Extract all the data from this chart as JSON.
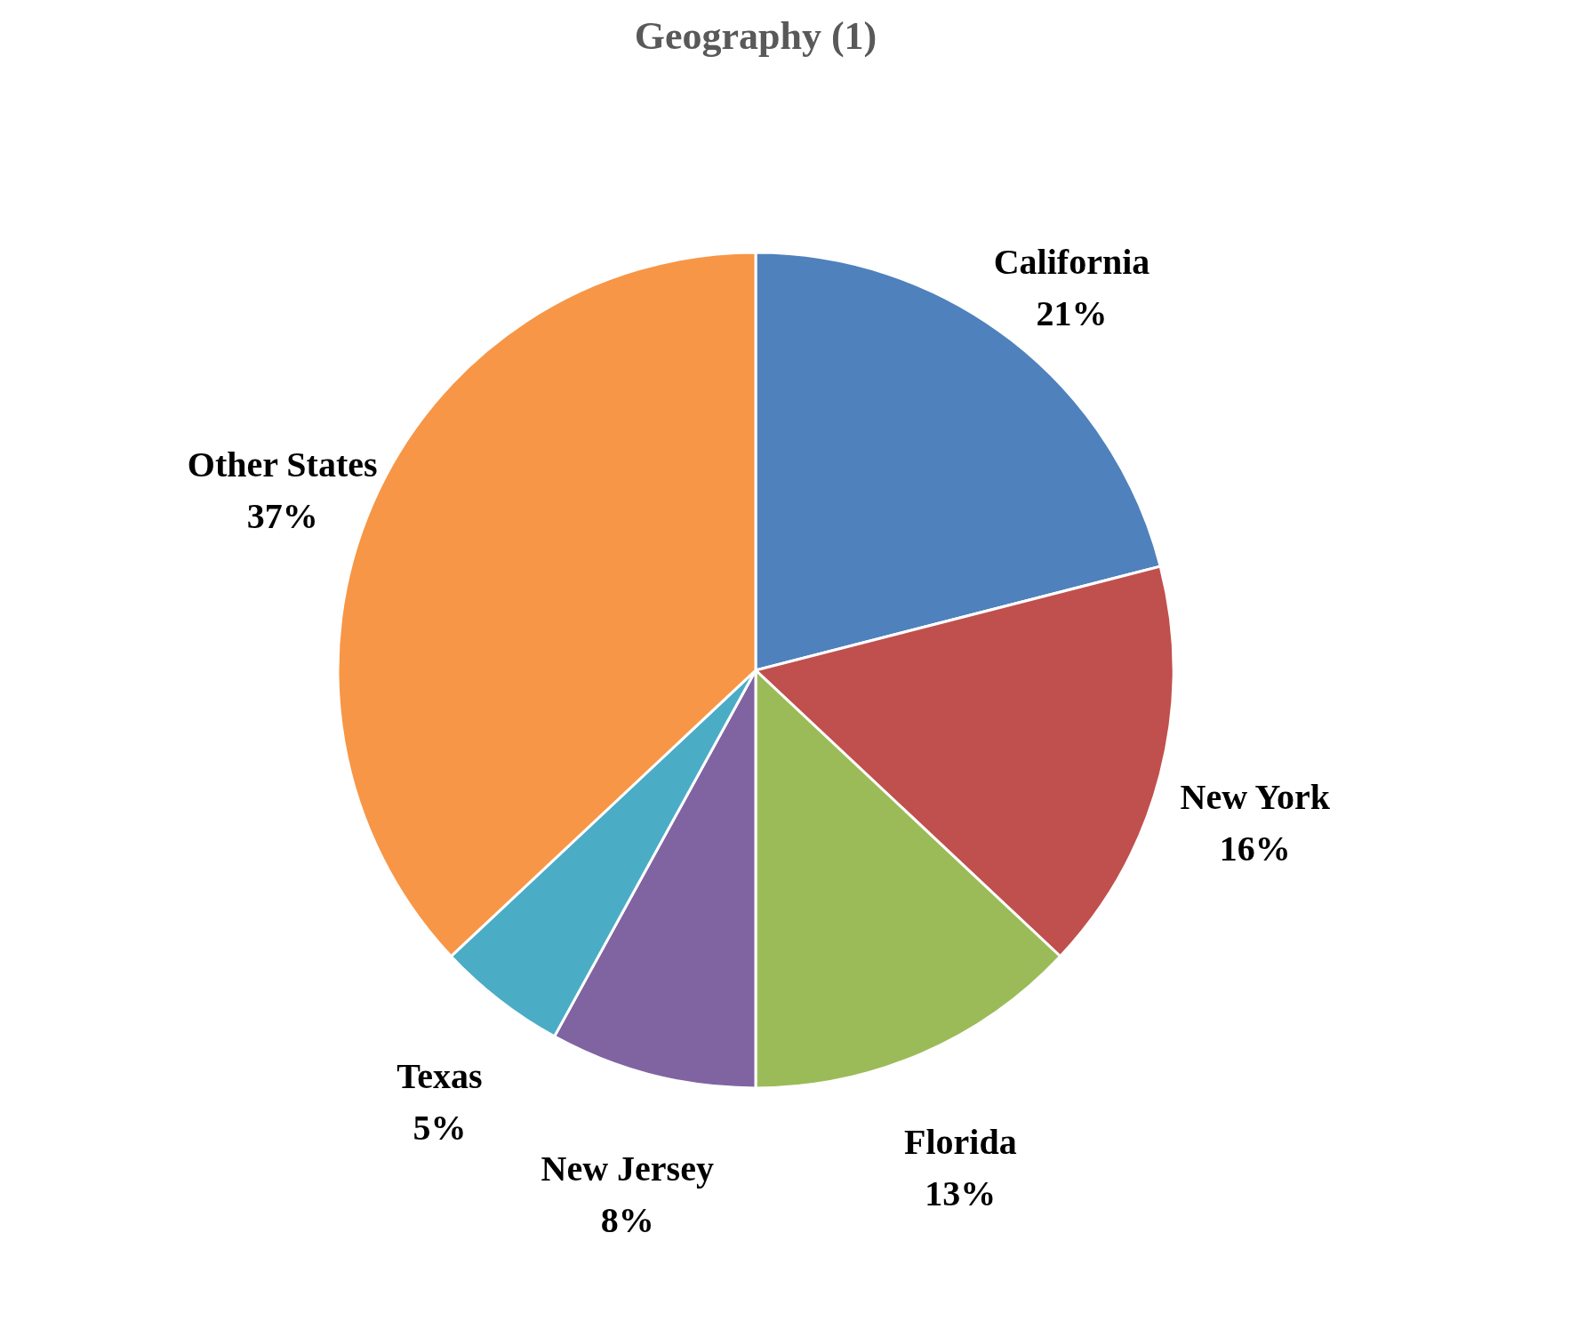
{
  "chart_data": {
    "type": "pie",
    "title": "Geography (1)",
    "categories": [
      "California",
      "New York",
      "Florida",
      "New Jersey",
      "Texas",
      "Other States"
    ],
    "values": [
      21,
      16,
      13,
      8,
      5,
      37
    ],
    "value_labels": [
      "21%",
      "16%",
      "13%",
      "8%",
      "5%",
      "37%"
    ],
    "colors": [
      "#4f81bd",
      "#c0504d",
      "#9bbb59",
      "#8064a2",
      "#4bacc6",
      "#f79646"
    ],
    "legend": false
  }
}
